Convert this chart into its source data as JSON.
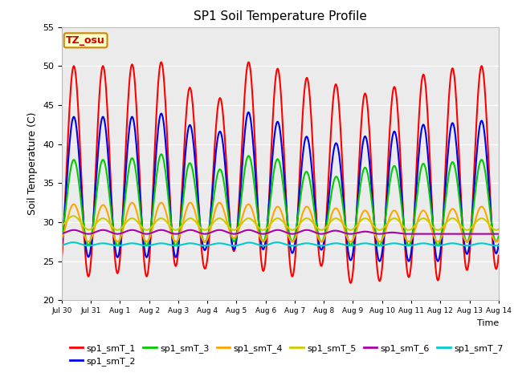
{
  "title": "SP1 Soil Temperature Profile",
  "xlabel": "Time",
  "ylabel": "Soil Temperature (C)",
  "ylim": [
    20,
    55
  ],
  "annotation": "TZ_osu",
  "series_names": [
    "sp1_smT_1",
    "sp1_smT_2",
    "sp1_smT_3",
    "sp1_smT_4",
    "sp1_smT_5",
    "sp1_smT_6",
    "sp1_smT_7"
  ],
  "colors": [
    "#FF0000",
    "#0000EE",
    "#00CC00",
    "#FFA500",
    "#CCCC00",
    "#AA00AA",
    "#00CCCC"
  ],
  "daily_peaks": {
    "sp1_smT_1": [
      50.0,
      50.0,
      50.0,
      50.5,
      50.5,
      42.5,
      50.5,
      50.5,
      48.5,
      48.5,
      46.5,
      46.5,
      48.5,
      49.5,
      50.0
    ],
    "sp1_smT_2": [
      43.5,
      43.5,
      43.5,
      43.5,
      44.5,
      39.5,
      44.5,
      43.5,
      42.0,
      39.5,
      41.0,
      41.0,
      42.5,
      42.5,
      43.0
    ],
    "sp1_smT_3": [
      38.0,
      38.0,
      38.0,
      38.5,
      39.0,
      35.5,
      38.5,
      38.5,
      37.5,
      35.0,
      37.0,
      37.0,
      37.5,
      37.5,
      38.0
    ],
    "sp1_smT_4": [
      32.5,
      32.0,
      32.5,
      32.5,
      32.5,
      32.5,
      32.5,
      32.0,
      32.0,
      32.0,
      31.5,
      31.5,
      31.5,
      31.5,
      32.0
    ],
    "sp1_smT_5": [
      31.0,
      30.5,
      30.5,
      30.5,
      30.5,
      30.5,
      30.5,
      30.5,
      30.5,
      30.5,
      30.5,
      30.5,
      30.5,
      30.5,
      30.5
    ],
    "sp1_smT_6": [
      29.0,
      29.0,
      29.0,
      29.0,
      29.0,
      29.0,
      29.0,
      29.0,
      29.0,
      29.0,
      28.8,
      28.8,
      28.5,
      28.5,
      28.5
    ],
    "sp1_smT_7": [
      27.5,
      27.3,
      27.3,
      27.3,
      27.3,
      27.3,
      27.3,
      27.5,
      27.3,
      27.3,
      27.3,
      27.3,
      27.3,
      27.3,
      27.3
    ]
  },
  "daily_troughs": {
    "sp1_smT_1": [
      23.5,
      23.0,
      23.5,
      23.0,
      24.5,
      24.0,
      26.5,
      23.5,
      23.0,
      24.5,
      22.0,
      22.5,
      23.0,
      22.5,
      24.0
    ],
    "sp1_smT_2": [
      26.0,
      25.5,
      25.5,
      25.5,
      25.5,
      26.5,
      26.5,
      26.5,
      26.0,
      26.5,
      25.0,
      25.0,
      25.0,
      25.0,
      26.0
    ],
    "sp1_smT_3": [
      27.5,
      27.0,
      27.0,
      27.0,
      27.0,
      27.5,
      27.5,
      27.5,
      27.5,
      27.5,
      27.0,
      27.0,
      27.0,
      27.0,
      27.5
    ],
    "sp1_smT_4": [
      27.5,
      27.5,
      27.5,
      27.5,
      27.5,
      27.5,
      28.0,
      27.5,
      27.5,
      27.5,
      27.5,
      27.5,
      27.5,
      27.5,
      27.5
    ],
    "sp1_smT_5": [
      29.5,
      29.0,
      29.0,
      29.0,
      29.0,
      29.0,
      29.0,
      29.0,
      29.0,
      29.0,
      29.0,
      29.0,
      29.0,
      29.0,
      29.0
    ],
    "sp1_smT_6": [
      28.5,
      28.5,
      28.5,
      28.5,
      28.5,
      28.5,
      28.5,
      28.5,
      28.5,
      28.5,
      28.5,
      28.5,
      28.5,
      28.5,
      28.5
    ],
    "sp1_smT_7": [
      27.0,
      27.0,
      27.0,
      27.0,
      27.0,
      27.0,
      27.0,
      27.0,
      27.0,
      27.0,
      27.0,
      27.0,
      27.0,
      27.0,
      27.0
    ]
  },
  "xtick_labels": [
    "Jul 30",
    "Jul 31",
    "Aug 1",
    "Aug 2",
    "Aug 3",
    "Aug 4",
    "Aug 5",
    "Aug 6",
    "Aug 7",
    "Aug 8",
    "Aug 9",
    "Aug 10",
    "Aug 11",
    "Aug 12",
    "Aug 13",
    "Aug 14"
  ],
  "ytick_vals": [
    20,
    25,
    30,
    35,
    40,
    45,
    50,
    55
  ],
  "plot_bg_color": "#EBEBEB",
  "fig_bg_color": "#FFFFFF",
  "grid_color": "#FFFFFF",
  "line_width": 1.5,
  "n_days": 15,
  "points_per_day": 48
}
